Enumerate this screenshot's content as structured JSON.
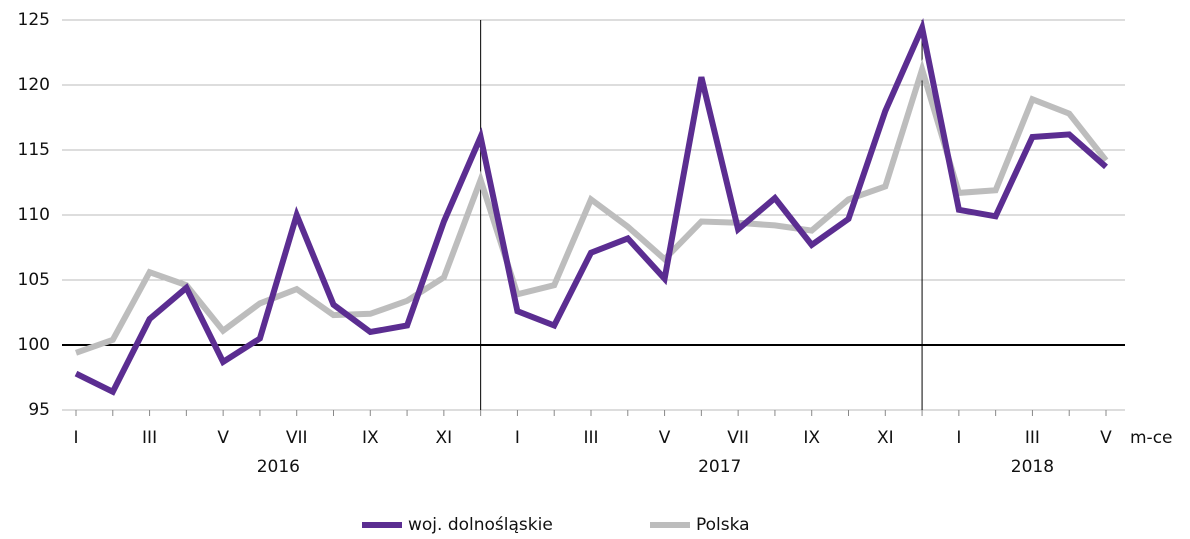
{
  "chart_data": {
    "type": "line",
    "categories": [
      "I",
      null,
      "III",
      null,
      "V",
      null,
      "VII",
      null,
      "IX",
      null,
      "XI",
      null,
      "I",
      null,
      "III",
      null,
      "V",
      null,
      "VII",
      null,
      "IX",
      null,
      "XI",
      null,
      "I",
      null,
      "III",
      null,
      "V"
    ],
    "years": [
      "2016",
      "2017",
      "2018"
    ],
    "x_label": "m-ce",
    "series": [
      {
        "name": "woj. dolnośląskie",
        "color": "#5b2d91",
        "values": [
          97.8,
          96.4,
          102.0,
          104.4,
          98.7,
          100.5,
          110.0,
          103.1,
          101.0,
          101.5,
          109.5,
          116.0,
          102.6,
          101.5,
          107.1,
          108.2,
          105.1,
          120.6,
          108.9,
          111.3,
          107.7,
          109.7,
          118.0,
          124.4,
          110.4,
          109.9,
          116.0,
          116.2,
          113.7
        ]
      },
      {
        "name": "Polska",
        "color": "#bdbdbd",
        "values": [
          99.4,
          100.4,
          105.6,
          104.6,
          101.1,
          103.2,
          104.3,
          102.3,
          102.4,
          103.4,
          105.2,
          112.7,
          103.9,
          104.6,
          111.2,
          109.1,
          106.6,
          109.5,
          109.4,
          109.2,
          108.8,
          111.2,
          112.2,
          121.2,
          111.7,
          111.9,
          118.9,
          117.8,
          114.2
        ]
      }
    ],
    "ylim": [
      95,
      125
    ],
    "yticks": [
      95,
      100,
      105,
      110,
      115,
      120,
      125
    ],
    "reference_line": 100,
    "grid": true,
    "legend": "bottom"
  }
}
